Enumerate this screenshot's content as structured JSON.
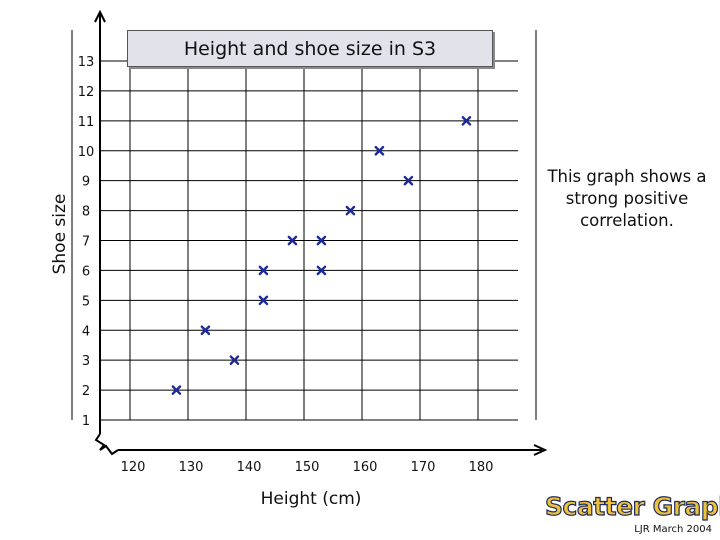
{
  "chart_data": {
    "type": "scatter",
    "title": "Height and shoe size in S3",
    "xlabel": "Height (cm)",
    "ylabel": "Shoe size",
    "xlim": [
      110,
      190
    ],
    "ylim": [
      0.5,
      13
    ],
    "xticks": [
      120,
      130,
      140,
      150,
      160,
      170,
      180
    ],
    "yticks": [
      1,
      2,
      3,
      4,
      5,
      6,
      7,
      8,
      9,
      10,
      11,
      12,
      13
    ],
    "grid": true,
    "marker_color": "#1c2a9c",
    "points": [
      {
        "x": 128,
        "y": 2
      },
      {
        "x": 133,
        "y": 4
      },
      {
        "x": 138,
        "y": 3
      },
      {
        "x": 143,
        "y": 5
      },
      {
        "x": 143,
        "y": 6
      },
      {
        "x": 148,
        "y": 7
      },
      {
        "x": 153,
        "y": 7
      },
      {
        "x": 153,
        "y": 6
      },
      {
        "x": 158,
        "y": 8
      },
      {
        "x": 163,
        "y": 10
      },
      {
        "x": 168,
        "y": 9
      },
      {
        "x": 178,
        "y": 11
      }
    ],
    "annotation": "This graph shows a strong positive correlation."
  },
  "footer": {
    "brand": "Scatter Graphs",
    "credit": "LJR March 2004"
  }
}
